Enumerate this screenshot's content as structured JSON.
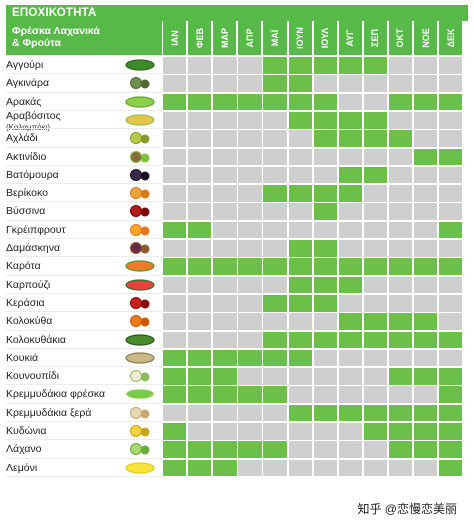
{
  "banner": {
    "title": "ΕΠΟΧΙΚΟΤΗΤΑ"
  },
  "header": {
    "column_title_line1": "Φρέσκα Λαχανικά",
    "column_title_line2": "& Φρούτα"
  },
  "months": [
    "ΙΑΝ",
    "ΦΕΒ",
    "ΜΑΡ",
    "ΑΠΡ",
    "ΜΑΪ",
    "ΙΟΥΝ",
    "ΙΟΥΛ",
    "ΑΥΓ",
    "ΣΕΠ",
    "ΟΚΤ",
    "ΝΟΕ",
    "ΔΕΚ"
  ],
  "colors": {
    "accent": "#57b947",
    "in_season": "#6cc04a",
    "out_of_season": "#cfcfcf"
  },
  "rows": [
    {
      "name": "Αγγούρι",
      "sub": "",
      "icon": "cucumber-icon",
      "season": [
        0,
        0,
        0,
        0,
        1,
        1,
        1,
        1,
        1,
        0,
        0,
        0
      ]
    },
    {
      "name": "Αγκινάρα",
      "sub": "",
      "icon": "artichoke-icon",
      "season": [
        0,
        0,
        0,
        0,
        1,
        1,
        0,
        0,
        0,
        0,
        0,
        0
      ]
    },
    {
      "name": "Αρακάς",
      "sub": "",
      "icon": "peas-icon",
      "season": [
        1,
        1,
        1,
        1,
        1,
        1,
        1,
        0,
        0,
        1,
        1,
        1
      ]
    },
    {
      "name": "Αραβόσιτος",
      "sub": "(Καλαμπόκι)",
      "icon": "corn-icon",
      "season": [
        0,
        0,
        0,
        0,
        0,
        1,
        1,
        1,
        1,
        0,
        0,
        0
      ]
    },
    {
      "name": "Αχλάδι",
      "sub": "",
      "icon": "pear-icon",
      "season": [
        0,
        0,
        0,
        0,
        0,
        0,
        1,
        1,
        1,
        1,
        0,
        0
      ]
    },
    {
      "name": "Ακτινίδιο",
      "sub": "",
      "icon": "kiwi-icon",
      "season": [
        0,
        0,
        0,
        0,
        0,
        0,
        0,
        0,
        0,
        0,
        1,
        1
      ]
    },
    {
      "name": "Βατόμουρα",
      "sub": "",
      "icon": "blackberry-icon",
      "season": [
        0,
        0,
        0,
        0,
        0,
        0,
        0,
        1,
        1,
        0,
        0,
        0
      ]
    },
    {
      "name": "Βερίκοκο",
      "sub": "",
      "icon": "apricot-icon",
      "season": [
        0,
        0,
        0,
        0,
        1,
        1,
        1,
        1,
        0,
        0,
        0,
        0
      ]
    },
    {
      "name": "Βύσσινα",
      "sub": "",
      "icon": "sour-cherry-icon",
      "season": [
        0,
        0,
        0,
        0,
        0,
        0,
        1,
        0,
        0,
        0,
        0,
        0
      ]
    },
    {
      "name": "Γκρέιπφρουτ",
      "sub": "",
      "icon": "grapefruit-icon",
      "season": [
        1,
        1,
        0,
        0,
        0,
        0,
        0,
        0,
        0,
        0,
        0,
        1
      ]
    },
    {
      "name": "Δαμάσκηνα",
      "sub": "",
      "icon": "plum-icon",
      "season": [
        0,
        0,
        0,
        0,
        0,
        1,
        1,
        0,
        0,
        0,
        0,
        0
      ]
    },
    {
      "name": "Καρότα",
      "sub": "",
      "icon": "carrot-icon",
      "season": [
        1,
        1,
        1,
        1,
        1,
        1,
        1,
        1,
        1,
        1,
        1,
        1
      ]
    },
    {
      "name": "Καρπούζι",
      "sub": "",
      "icon": "watermelon-icon",
      "season": [
        0,
        0,
        0,
        0,
        0,
        1,
        1,
        1,
        0,
        0,
        0,
        0
      ]
    },
    {
      "name": "Κεράσια",
      "sub": "",
      "icon": "cherry-icon",
      "season": [
        0,
        0,
        0,
        0,
        1,
        1,
        1,
        0,
        0,
        0,
        0,
        0
      ]
    },
    {
      "name": "Κολοκύθα",
      "sub": "",
      "icon": "pumpkin-icon",
      "season": [
        0,
        0,
        0,
        0,
        0,
        0,
        0,
        1,
        1,
        1,
        1,
        0
      ]
    },
    {
      "name": "Κολοκυθάκια",
      "sub": "",
      "icon": "zucchini-icon",
      "season": [
        0,
        0,
        0,
        0,
        1,
        1,
        1,
        1,
        1,
        1,
        1,
        1
      ]
    },
    {
      "name": "Κουκιά",
      "sub": "",
      "icon": "broad-beans-icon",
      "season": [
        1,
        1,
        1,
        1,
        1,
        1,
        0,
        0,
        0,
        0,
        0,
        0
      ]
    },
    {
      "name": "Κουνουπίδι",
      "sub": "",
      "icon": "cauliflower-icon",
      "season": [
        1,
        1,
        1,
        0,
        0,
        0,
        0,
        0,
        0,
        1,
        1,
        1
      ]
    },
    {
      "name": "Κρεμμυδάκια φρέσκα",
      "sub": "",
      "icon": "spring-onion-icon",
      "season": [
        1,
        1,
        1,
        1,
        1,
        0,
        0,
        0,
        0,
        0,
        0,
        1
      ]
    },
    {
      "name": "Κρεμμυδάκια ξερά",
      "sub": "",
      "icon": "dry-onion-icon",
      "season": [
        0,
        0,
        0,
        0,
        0,
        1,
        1,
        1,
        1,
        1,
        1,
        1
      ]
    },
    {
      "name": "Κυδώνια",
      "sub": "",
      "icon": "quince-icon",
      "season": [
        1,
        0,
        0,
        0,
        0,
        0,
        0,
        0,
        1,
        1,
        1,
        1
      ]
    },
    {
      "name": "Λάχανο",
      "sub": "",
      "icon": "cabbage-icon",
      "season": [
        1,
        1,
        1,
        1,
        1,
        0,
        0,
        0,
        0,
        1,
        1,
        1
      ]
    },
    {
      "name": "Λεμόνι",
      "sub": "",
      "icon": "lemon-icon",
      "season": [
        1,
        1,
        1,
        0,
        0,
        0,
        0,
        0,
        0,
        0,
        0,
        1
      ]
    }
  ],
  "watermark": "知乎 @恋慢恋美丽"
}
